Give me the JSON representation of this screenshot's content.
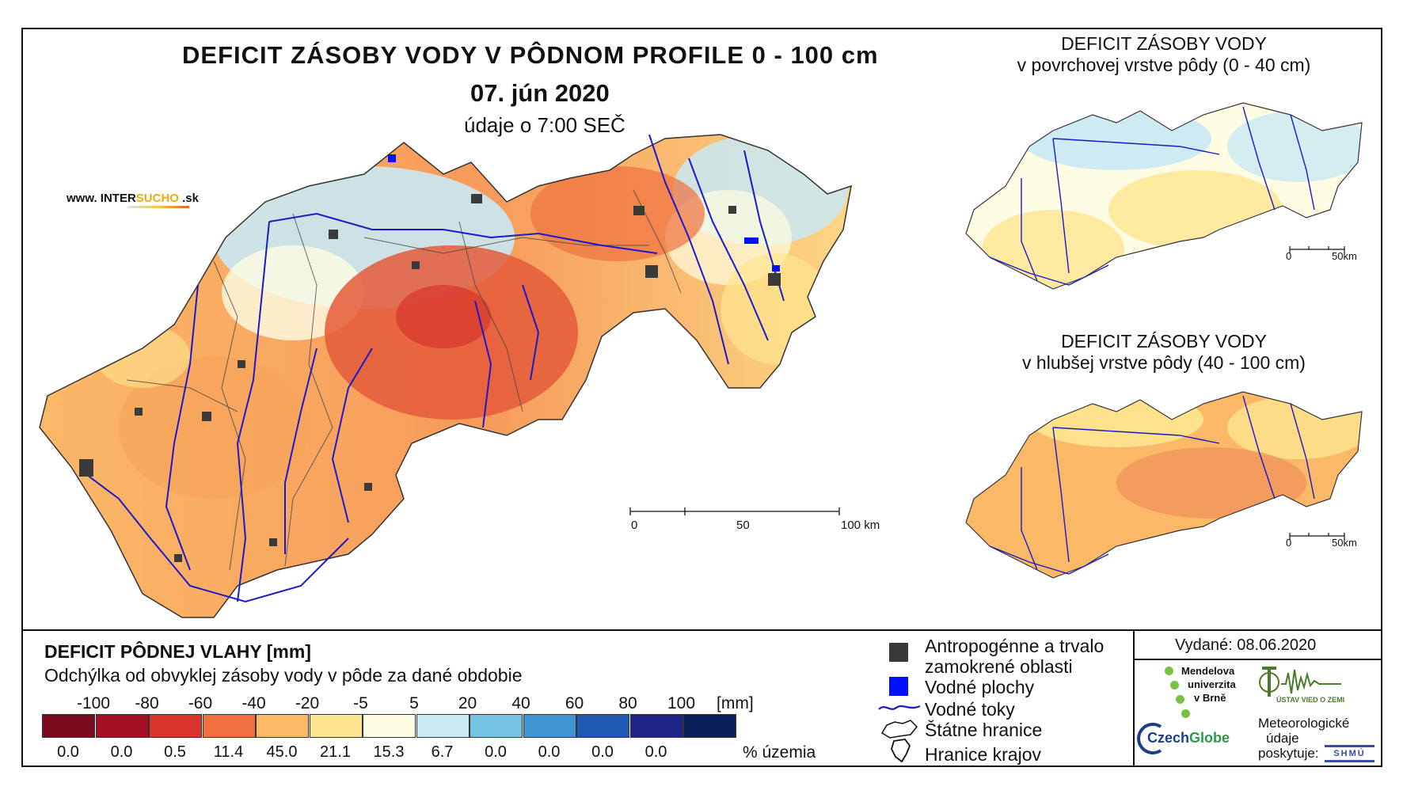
{
  "title": "DEFICIT ZÁSOBY VODY V PÔDNOM PROFILE 0 - 100 cm",
  "date": "07. jún 2020",
  "time_note": "údaje o 7:00 SEČ",
  "source_logo": {
    "prefix": "www. ",
    "a": "INTER",
    "b": "SUCHO",
    "c": " .sk"
  },
  "insets": [
    {
      "title_line1": "DEFICIT ZÁSOBY VODY",
      "title_line2": "v povrchovej vrstve pôdy (0 - 40 cm)",
      "scale": [
        "0",
        "50km"
      ]
    },
    {
      "title_line1": "DEFICIT ZÁSOBY VODY",
      "title_line2": "v hlubšej vrstve pôdy (40 - 100 cm)",
      "scale": [
        "0",
        "50km"
      ]
    }
  ],
  "main_scale": [
    "0",
    "50",
    "100 km"
  ],
  "legend": {
    "title": "DEFICIT PÔDNEJ VLAHY [mm]",
    "subtitle": "Odchýlka od obvyklej zásoby vody v pôde za dané obdobie",
    "breaks": [
      "-100",
      "-80",
      "-60",
      "-40",
      "-20",
      "-5",
      "5",
      "20",
      "40",
      "60",
      "80",
      "100"
    ],
    "unit": "[mm]",
    "classes": [
      {
        "color": "#7a0a1e",
        "pct": "0.0"
      },
      {
        "color": "#a50f26",
        "pct": "0.0"
      },
      {
        "color": "#d7342c",
        "pct": "0.5"
      },
      {
        "color": "#f0703f",
        "pct": "11.4"
      },
      {
        "color": "#fbb968",
        "pct": "45.0"
      },
      {
        "color": "#fde58f",
        "pct": "21.1"
      },
      {
        "color": "#fefde3",
        "pct": "15.3"
      },
      {
        "color": "#c9e9f4",
        "pct": "6.7"
      },
      {
        "color": "#73c4e3",
        "pct": "0.0"
      },
      {
        "color": "#3f94d1",
        "pct": "0.0"
      },
      {
        "color": "#1e5ab4",
        "pct": "0.0"
      },
      {
        "color": "#1f2586",
        "pct": "0.0"
      },
      {
        "color": "#0b2058",
        "pct": ""
      }
    ],
    "pct_label": "% územia"
  },
  "symbols": {
    "urban_line1": "Antropogénne a trvalo",
    "urban_line2": "zamokrené oblasti",
    "water": "Vodné plochy",
    "rivers": "Vodné toky",
    "border": "Štátne hranice",
    "regions": "Hranice krajov"
  },
  "issued": "Vydané: 08.06.2020",
  "partners": {
    "mendel1": "Mendelova",
    "mendel2": "univerzita",
    "mendel3": "v Brně",
    "ustav": "ÚSTAV VIED O ZEMI",
    "czech_a": "Czech",
    "czech_b": "Globe",
    "met1": "Meteorologické",
    "met2": "údaje",
    "met3": "poskytuje:",
    "shmu": "SHMÚ"
  },
  "colors": {
    "river": "#1a1acc",
    "urban": "#3a3a3a",
    "water": "#0010ff"
  }
}
